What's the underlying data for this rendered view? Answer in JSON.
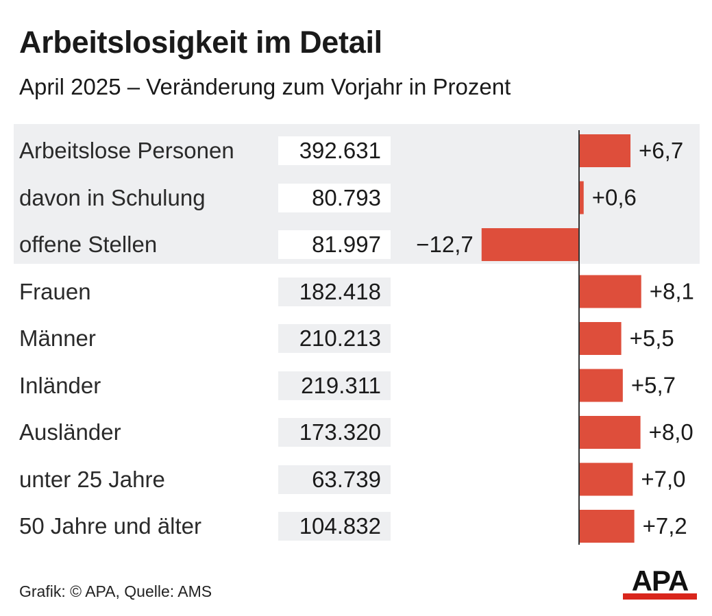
{
  "header": {
    "title": "Arbeitslosigkeit im Detail",
    "subtitle": "April 2025 – Veränderung zum Vorjahr in Prozent"
  },
  "chart_data": {
    "type": "bar",
    "orientation": "horizontal",
    "categories": [
      "Arbeitslose Personen",
      "davon in Schulung",
      "offene Stellen",
      "Frauen",
      "Männer",
      "Inländer",
      "Ausländer",
      "unter 25 Jahre",
      "50 Jahre und älter"
    ],
    "absolute_values": [
      "392.631",
      "80.793",
      "81.997",
      "182.418",
      "210.213",
      "219.311",
      "173.320",
      "63.739",
      "104.832"
    ],
    "values": [
      6.7,
      0.6,
      -12.7,
      8.1,
      5.5,
      5.7,
      8.0,
      7.0,
      7.2
    ],
    "value_labels": [
      "+6,7",
      "+0,6",
      "−12,7",
      "+8,1",
      "+5,5",
      "+5,7",
      "+8,0",
      "+7,0",
      "+7,2"
    ],
    "highlighted_rows": [
      0,
      1,
      2
    ],
    "bar_color": "#de4e3b",
    "highlight_band_color": "#eeeff1",
    "value_box_color_highlighted": "#ffffff",
    "value_box_color": "#eeeff1",
    "axis_color": "#333333"
  },
  "footer": {
    "source": "Grafik: © APA, Quelle: AMS"
  },
  "logo": {
    "text": "APA",
    "color": "#d9261c"
  }
}
